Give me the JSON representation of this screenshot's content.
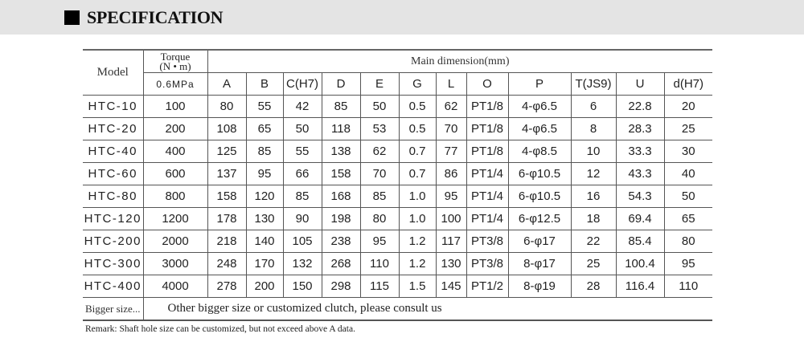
{
  "header": {
    "title": "SPECIFICATION",
    "icon": "black-square-icon"
  },
  "table": {
    "model_label": "Model",
    "torque_label": "Torque",
    "torque_unit": "(N • m)",
    "pressure_label": "0.6MPa",
    "main_dimension_label": "Main dimension(mm)",
    "columns": [
      "A",
      "B",
      "C(H7)",
      "D",
      "E",
      "G",
      "L",
      "O",
      "P",
      "T(JS9)",
      "U",
      "d(H7)"
    ],
    "rows": [
      [
        "HTC-10",
        "100",
        "80",
        "55",
        "42",
        "85",
        "50",
        "0.5",
        "62",
        "PT1/8",
        "4-φ6.5",
        "6",
        "22.8",
        "20"
      ],
      [
        "HTC-20",
        "200",
        "108",
        "65",
        "50",
        "118",
        "53",
        "0.5",
        "70",
        "PT1/8",
        "4-φ6.5",
        "8",
        "28.3",
        "25"
      ],
      [
        "HTC-40",
        "400",
        "125",
        "85",
        "55",
        "138",
        "62",
        "0.7",
        "77",
        "PT1/8",
        "4-φ8.5",
        "10",
        "33.3",
        "30"
      ],
      [
        "HTC-60",
        "600",
        "137",
        "95",
        "66",
        "158",
        "70",
        "0.7",
        "86",
        "PT1/4",
        "6-φ10.5",
        "12",
        "43.3",
        "40"
      ],
      [
        "HTC-80",
        "800",
        "158",
        "120",
        "85",
        "168",
        "85",
        "1.0",
        "95",
        "PT1/4",
        "6-φ10.5",
        "16",
        "54.3",
        "50"
      ],
      [
        "HTC-120",
        "1200",
        "178",
        "130",
        "90",
        "198",
        "80",
        "1.0",
        "100",
        "PT1/4",
        "6-φ12.5",
        "18",
        "69.4",
        "65"
      ],
      [
        "HTC-200",
        "2000",
        "218",
        "140",
        "105",
        "238",
        "95",
        "1.2",
        "117",
        "PT3/8",
        "6-φ17",
        "22",
        "85.4",
        "80"
      ],
      [
        "HTC-300",
        "3000",
        "248",
        "170",
        "132",
        "268",
        "110",
        "1.2",
        "130",
        "PT3/8",
        "8-φ17",
        "25",
        "100.4",
        "95"
      ],
      [
        "HTC-400",
        "4000",
        "278",
        "200",
        "150",
        "298",
        "115",
        "1.5",
        "145",
        "PT1/2",
        "8-φ19",
        "28",
        "116.4",
        "110"
      ]
    ],
    "bigger_label": "Bigger size...",
    "bigger_text": "Other bigger size or customized clutch, please consult us"
  },
  "remark": "Remark: Shaft hole size can be customized, but not exceed above A data."
}
